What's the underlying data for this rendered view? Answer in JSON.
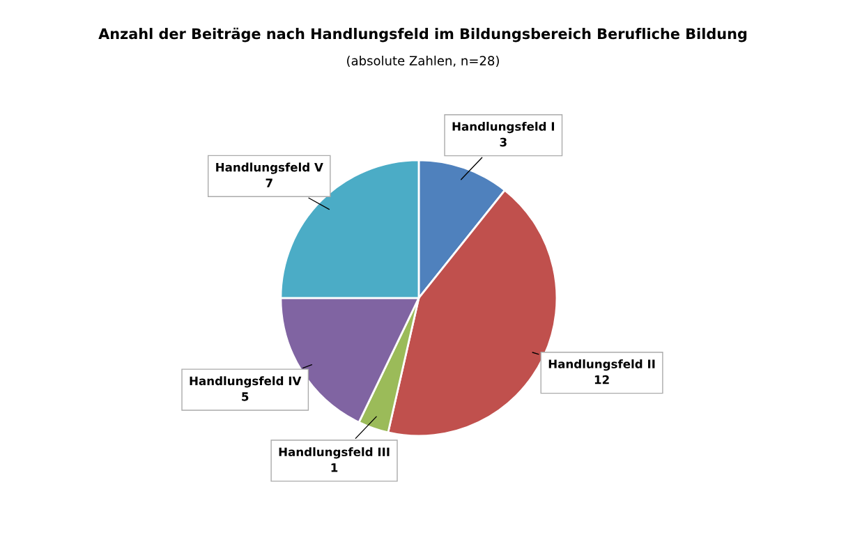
{
  "chart_data": {
    "type": "pie",
    "title": "Anzahl der Beiträge nach Handlungsfeld im Bildungsbereich Berufliche Bildung",
    "subtitle": "(absolute Zahlen, n=28)",
    "categories": [
      "Handlungsfeld I",
      "Handlungsfeld II",
      "Handlungsfeld III",
      "Handlungsfeld IV",
      "Handlungsfeld V"
    ],
    "values": [
      3,
      12,
      1,
      5,
      7
    ],
    "colors": [
      "#4f81bd",
      "#c0504d",
      "#9bbb59",
      "#8064a2",
      "#4bacc6"
    ],
    "data_labels": true
  }
}
